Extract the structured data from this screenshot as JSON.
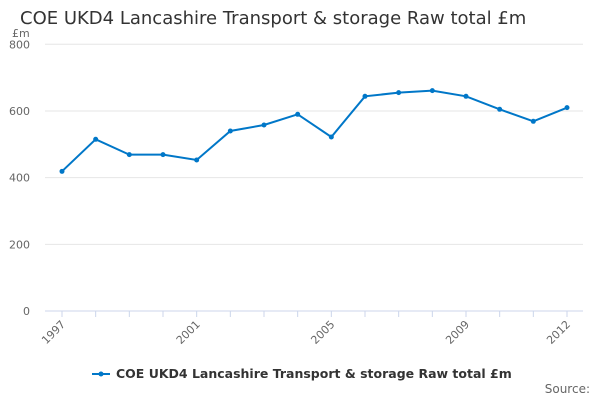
{
  "chart_data": {
    "type": "line",
    "title": "COE UKD4 Lancashire Transport & storage Raw total £m",
    "ylabel": "£m",
    "xlabel": "",
    "ylim": [
      0,
      800
    ],
    "yticks": [
      0,
      200,
      400,
      600,
      800
    ],
    "xtick_labels": [
      "1997",
      "2001",
      "2005",
      "2009",
      "2012"
    ],
    "x": [
      1997,
      1998,
      1999,
      2000,
      2001,
      2002,
      2003,
      2004,
      2005,
      2006,
      2007,
      2008,
      2009,
      2010,
      2011,
      2012
    ],
    "series": [
      {
        "name": "COE UKD4 Lancashire Transport & storage Raw total £m",
        "color": "#0077c8",
        "values": [
          419,
          515,
          469,
          469,
          453,
          540,
          558,
          590,
          522,
          644,
          655,
          661,
          644,
          605,
          569,
          610
        ]
      }
    ],
    "grid": true,
    "legend_position": "bottom"
  },
  "source_label": "Source:"
}
